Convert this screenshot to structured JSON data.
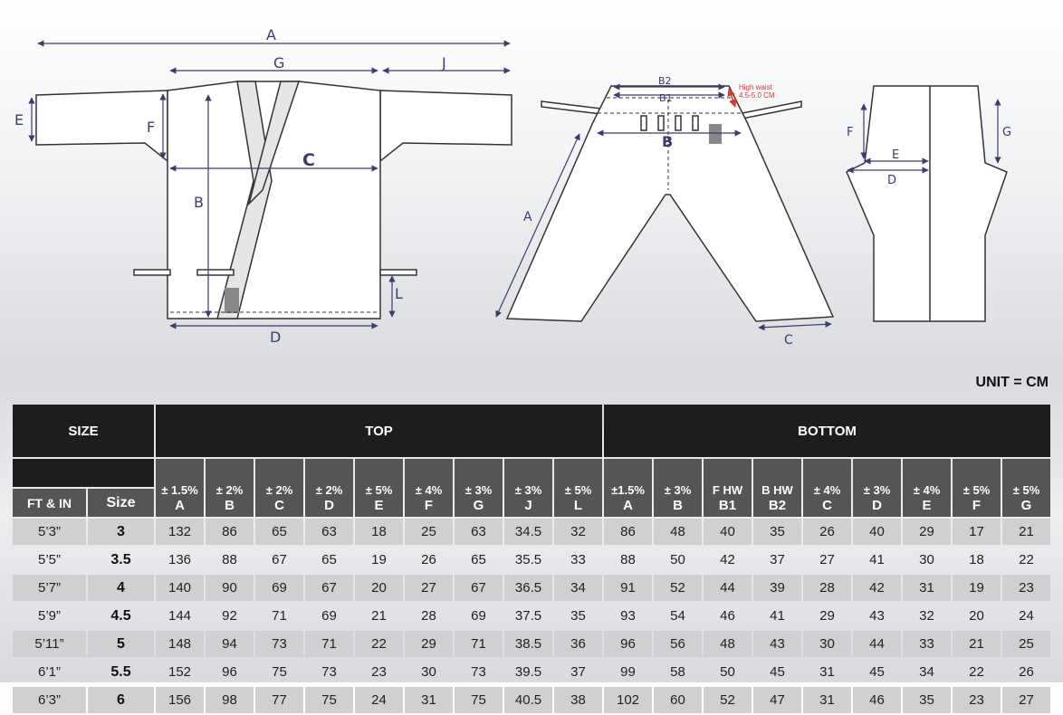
{
  "diagram": {
    "jacket_labels": {
      "A": "A",
      "G": "G",
      "J": "J",
      "E": "E",
      "F": "F",
      "C": "C",
      "B": "B",
      "L": "L",
      "D": "D"
    },
    "pants_labels": {
      "B2": "B2",
      "B1": "B1",
      "B": "B",
      "A": "A",
      "C": "C",
      "high_waist": "High waist",
      "high_waist_range": "4.5-5.0 CM"
    },
    "side_labels": {
      "F": "F",
      "E": "E",
      "D": "D",
      "G": "G"
    },
    "colors": {
      "dimension_line": "#3e3a6e",
      "high_waist": "#d23a3a",
      "belt_patch": "#888888"
    }
  },
  "unit": "UNIT = CM",
  "table": {
    "size_header": "SIZE",
    "top_header": "TOP",
    "bottom_header": "BOTTOM",
    "ftin_header": "FT & IN",
    "sizecol_header": "Size",
    "top_columns": [
      {
        "tol": "± 1.5%",
        "key": "A"
      },
      {
        "tol": "± 2%",
        "key": "B"
      },
      {
        "tol": "± 2%",
        "key": "C"
      },
      {
        "tol": "± 2%",
        "key": "D"
      },
      {
        "tol": "± 5%",
        "key": "E"
      },
      {
        "tol": "± 4%",
        "key": "F"
      },
      {
        "tol": "± 3%",
        "key": "G"
      },
      {
        "tol": "± 3%",
        "key": "J"
      },
      {
        "tol": "± 5%",
        "key": "L"
      }
    ],
    "bottom_columns": [
      {
        "tol": "±1.5%",
        "key": "A"
      },
      {
        "tol": "± 3%",
        "key": "B"
      },
      {
        "tol": "F HW",
        "key": "B1"
      },
      {
        "tol": "B HW",
        "key": "B2"
      },
      {
        "tol": "± 4%",
        "key": "C"
      },
      {
        "tol": "± 3%",
        "key": "D"
      },
      {
        "tol": "± 4%",
        "key": "E"
      },
      {
        "tol": "± 5%",
        "key": "F"
      },
      {
        "tol": "± 5%",
        "key": "G"
      }
    ],
    "rows": [
      {
        "height": "5’3”",
        "size": "3",
        "top": [
          "132",
          "86",
          "65",
          "63",
          "18",
          "25",
          "63",
          "34.5",
          "32"
        ],
        "bottom": [
          "86",
          "48",
          "40",
          "35",
          "26",
          "40",
          "29",
          "17",
          "21"
        ]
      },
      {
        "height": "5’5”",
        "size": "3.5",
        "top": [
          "136",
          "88",
          "67",
          "65",
          "19",
          "26",
          "65",
          "35.5",
          "33"
        ],
        "bottom": [
          "88",
          "50",
          "42",
          "37",
          "27",
          "41",
          "30",
          "18",
          "22"
        ]
      },
      {
        "height": "5’7”",
        "size": "4",
        "top": [
          "140",
          "90",
          "69",
          "67",
          "20",
          "27",
          "67",
          "36.5",
          "34"
        ],
        "bottom": [
          "91",
          "52",
          "44",
          "39",
          "28",
          "42",
          "31",
          "19",
          "23"
        ]
      },
      {
        "height": "5’9”",
        "size": "4.5",
        "top": [
          "144",
          "92",
          "71",
          "69",
          "21",
          "28",
          "69",
          "37.5",
          "35"
        ],
        "bottom": [
          "93",
          "54",
          "46",
          "41",
          "29",
          "43",
          "32",
          "20",
          "24"
        ]
      },
      {
        "height": "5’11”",
        "size": "5",
        "top": [
          "148",
          "94",
          "73",
          "71",
          "22",
          "29",
          "71",
          "38.5",
          "36"
        ],
        "bottom": [
          "96",
          "56",
          "48",
          "43",
          "30",
          "44",
          "33",
          "21",
          "25"
        ]
      },
      {
        "height": "6’1”",
        "size": "5.5",
        "top": [
          "152",
          "96",
          "75",
          "73",
          "23",
          "30",
          "73",
          "39.5",
          "37"
        ],
        "bottom": [
          "99",
          "58",
          "50",
          "45",
          "31",
          "45",
          "34",
          "22",
          "26"
        ]
      },
      {
        "height": "6’3”",
        "size": "6",
        "top": [
          "156",
          "98",
          "77",
          "75",
          "24",
          "31",
          "75",
          "40.5",
          "38"
        ],
        "bottom": [
          "102",
          "60",
          "52",
          "47",
          "31",
          "46",
          "35",
          "23",
          "27"
        ]
      }
    ]
  }
}
